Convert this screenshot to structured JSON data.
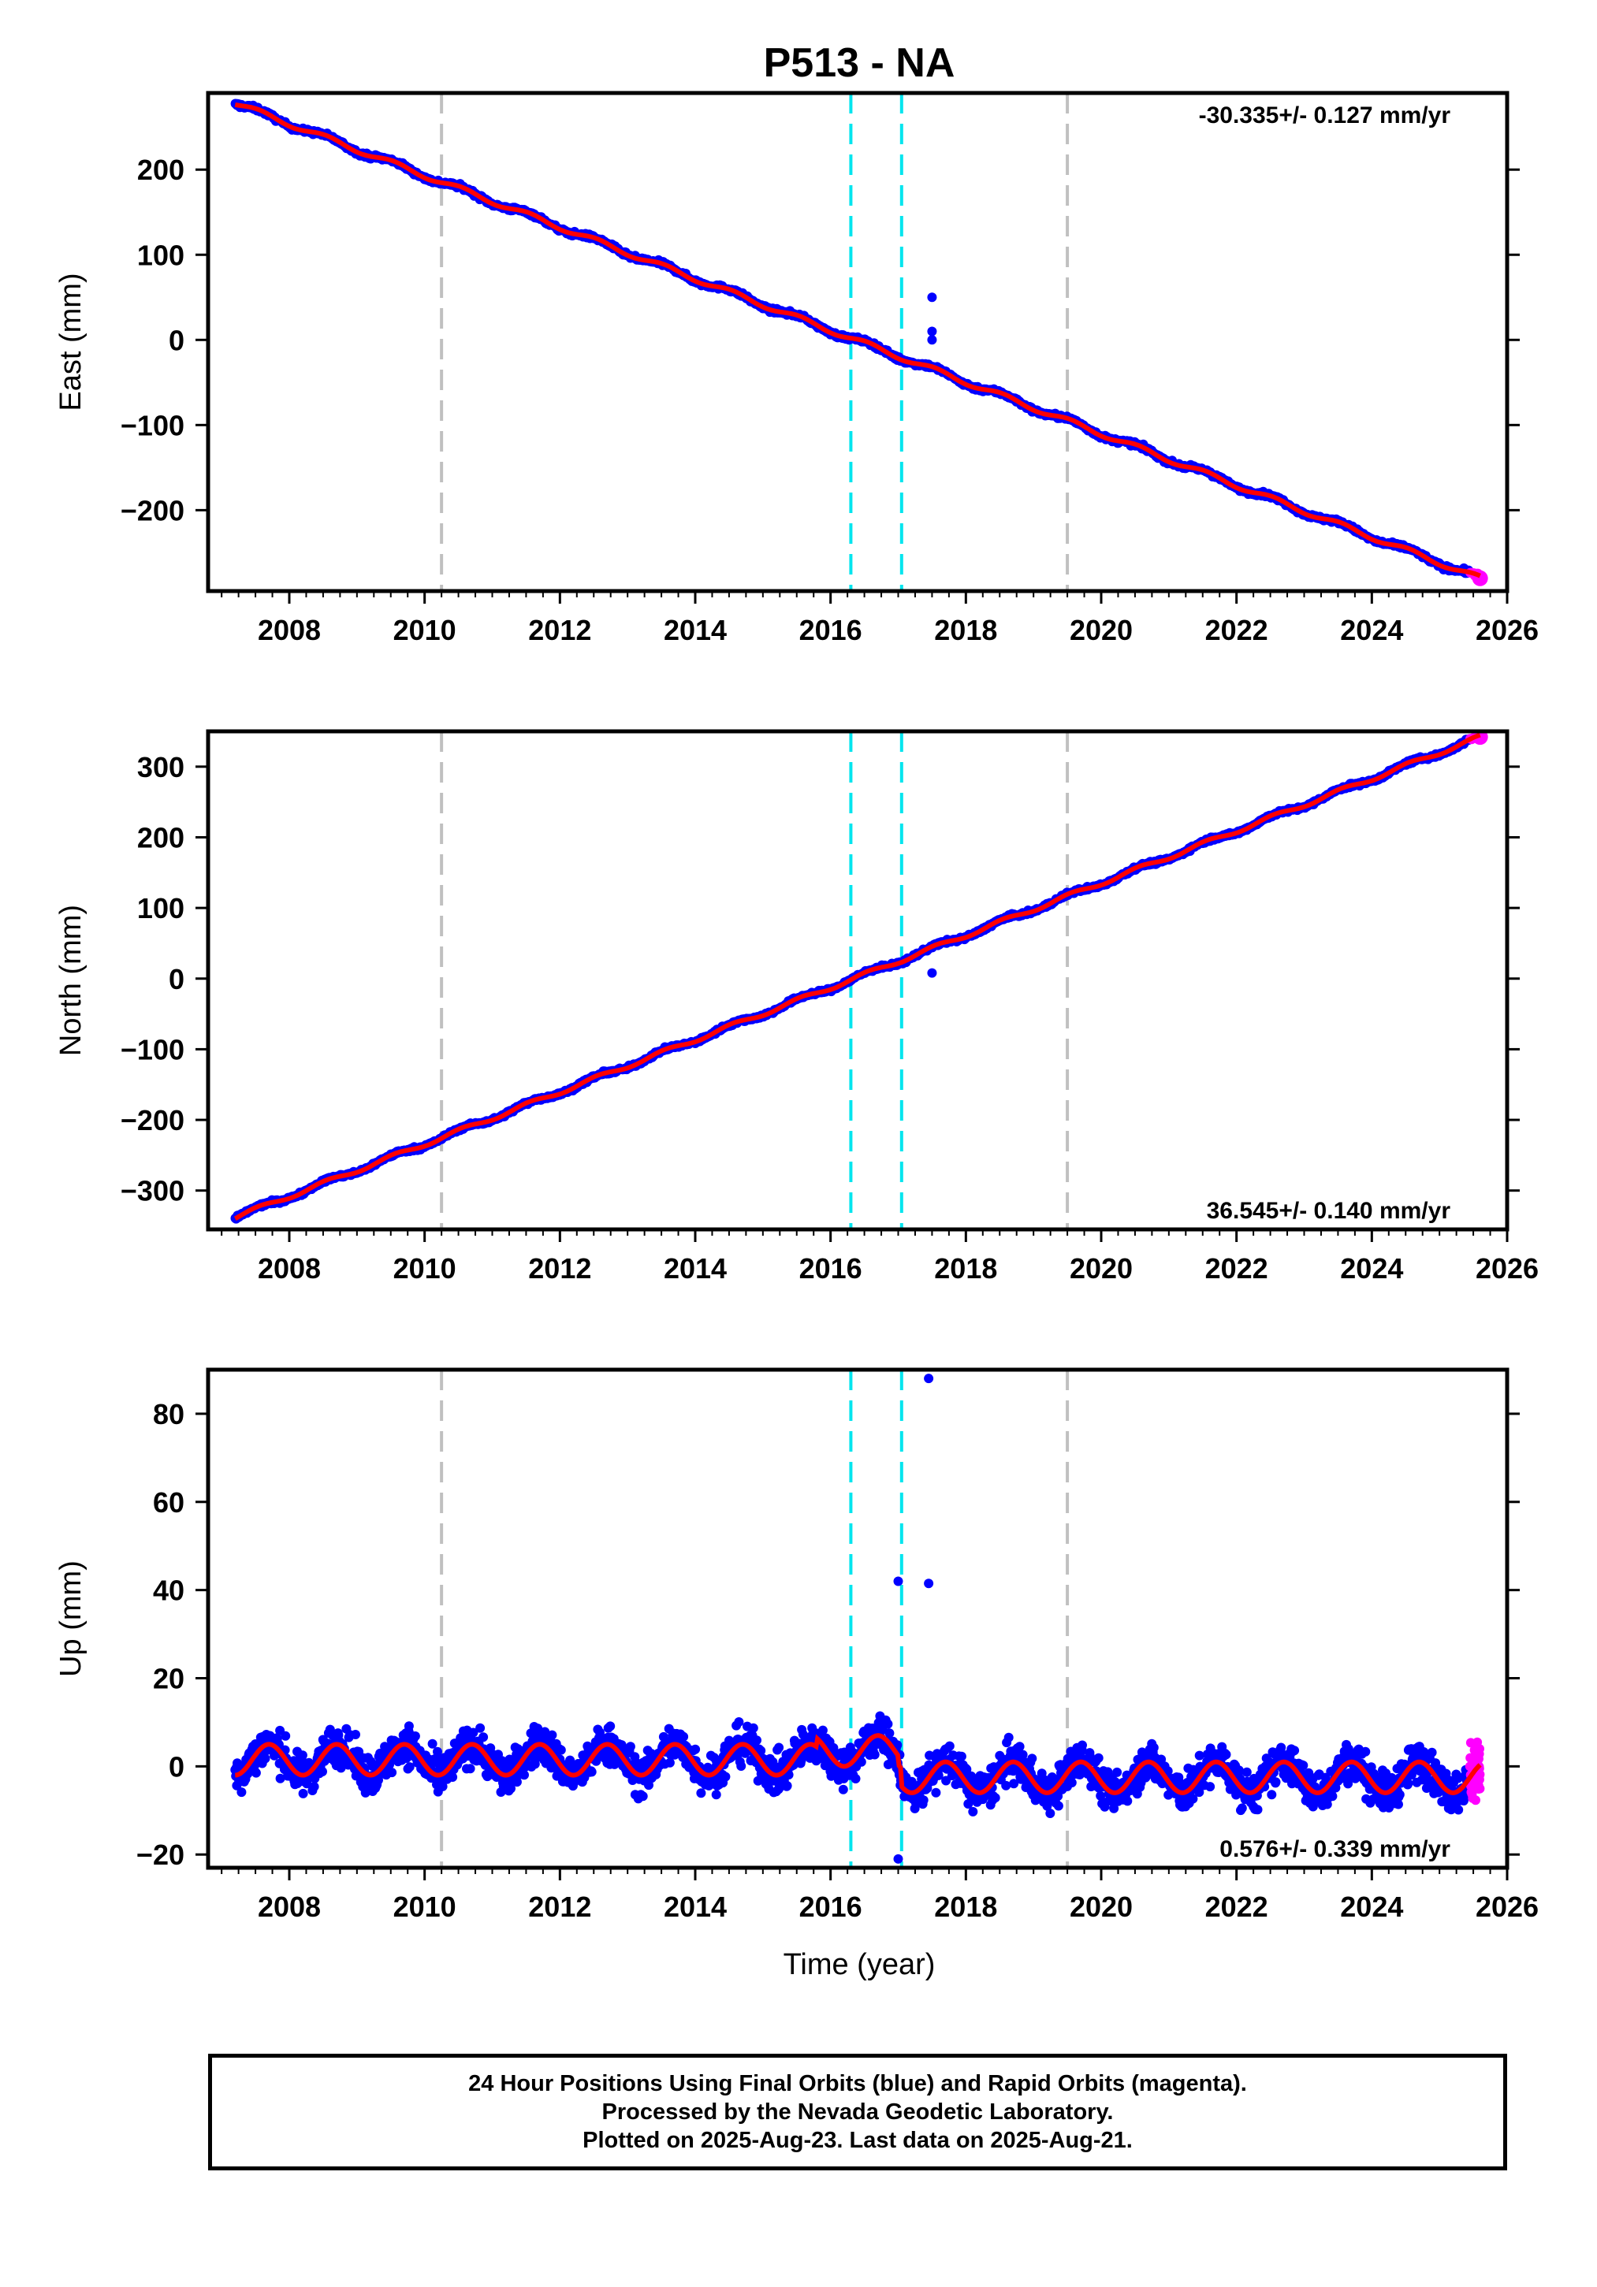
{
  "title": "P513 - NA",
  "colors": {
    "final_orbits": "#0000ff",
    "rapid_orbits": "#ff00ff",
    "model": "#ff0000",
    "equipment_change": "#c0c0c0",
    "earthquake": "#00e5ee"
  },
  "xaxis": {
    "label": "Time (year)",
    "range": [
      2006.8,
      2026.0
    ],
    "tick_labels": [
      "2008",
      "2010",
      "2012",
      "2014",
      "2016",
      "2018",
      "2020",
      "2022",
      "2024",
      "2026"
    ],
    "ticks": [
      2008,
      2010,
      2012,
      2014,
      2016,
      2018,
      2020,
      2022,
      2024,
      2026
    ]
  },
  "gray_lines": [
    2010.25,
    2019.5
  ],
  "cyan_lines": [
    2016.3,
    2017.05
  ],
  "chart_data": [
    {
      "type": "scatter",
      "component": "East",
      "ylabel": "East (mm)",
      "ylim": [
        -295,
        290
      ],
      "yticks": [
        -200,
        -100,
        0,
        100,
        200
      ],
      "ytick_labels": [
        "−200",
        "−100",
        "0",
        "100",
        "200"
      ],
      "rate_text": "-30.335+/- 0.127 mm/yr",
      "rate_position": "top-right",
      "start": {
        "x": 2007.2,
        "y": 278
      },
      "end": {
        "x": 2025.6,
        "y": -280
      },
      "slope_mm_per_yr": -30.335,
      "outliers": [
        {
          "x": 2017.5,
          "y": 50
        },
        {
          "x": 2017.5,
          "y": 10
        },
        {
          "x": 2017.5,
          "y": 0
        }
      ]
    },
    {
      "type": "scatter",
      "component": "North",
      "ylabel": "North (mm)",
      "ylim": [
        -355,
        350
      ],
      "yticks": [
        -300,
        -200,
        -100,
        0,
        100,
        200,
        300
      ],
      "ytick_labels": [
        "−300",
        "−200",
        "−100",
        "0",
        "100",
        "200",
        "300"
      ],
      "rate_text": "36.545+/- 0.140 mm/yr",
      "rate_position": "bottom-right",
      "start": {
        "x": 2007.2,
        "y": -338
      },
      "end": {
        "x": 2025.6,
        "y": 342
      },
      "slope_mm_per_yr": 36.545,
      "outliers": [
        {
          "x": 2017.5,
          "y": 8
        }
      ]
    },
    {
      "type": "scatter",
      "component": "Up",
      "ylabel": "Up (mm)",
      "ylim": [
        -23,
        90
      ],
      "yticks": [
        -20,
        0,
        20,
        40,
        60,
        80
      ],
      "ytick_labels": [
        "−20",
        "0",
        "20",
        "40",
        "60",
        "80"
      ],
      "rate_text": "0.576+/- 0.339 mm/yr",
      "rate_position": "bottom-right",
      "seasonal_amplitude_mm": 3.5,
      "noise_amplitude_mm": 5,
      "offsets": [
        {
          "x": 2017.05,
          "y": -9
        }
      ],
      "outliers": [
        {
          "x": 2017.45,
          "y": 88
        },
        {
          "x": 2017.0,
          "y": 42
        },
        {
          "x": 2017.45,
          "y": 41.5
        },
        {
          "x": 2017.0,
          "y": -21
        }
      ]
    }
  ],
  "footer": {
    "line1": "24 Hour Positions Using Final Orbits (blue) and Rapid Orbits (magenta).",
    "line2": "Processed by the Nevada Geodetic Laboratory.",
    "line3": "Plotted on 2025-Aug-23. Last data on 2025-Aug-21."
  }
}
